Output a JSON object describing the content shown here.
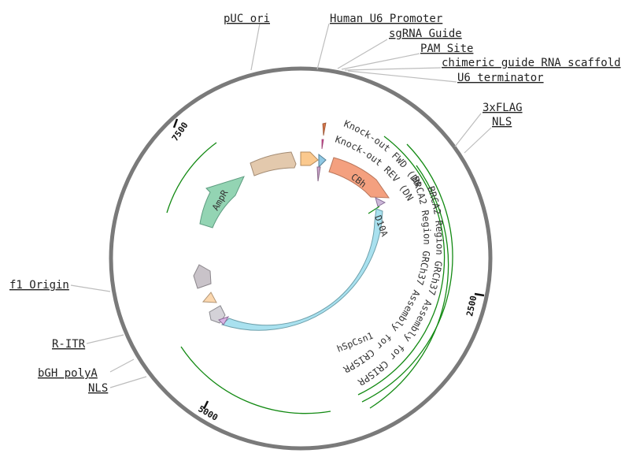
{
  "plasmid": {
    "backbone_color": "#7a7a7a",
    "track_color": "#138a13"
  },
  "labels": {
    "puc_ori": "pUC ori",
    "human_u6_promoter": "Human U6 Promoter",
    "sgrna_guide": "sgRNA Guide",
    "pam_site": "PAM Site",
    "chimeric_scaffold": "chimeric guide RNA scaffold",
    "u6_terminator": "U6 terminator",
    "flag3x": "3xFLAG",
    "nls_top": "NLS",
    "f1_origin": "f1 Origin",
    "r_itr": "R-ITR",
    "bgh_polya": "bGH polyA",
    "nls_bottom": "NLS"
  },
  "features": {
    "cbh": {
      "label": "CBh",
      "color": "#f4a07f"
    },
    "hspcsn1": {
      "label": "hSpCsn1",
      "color": "#a9e1ef"
    },
    "ampr": {
      "label": "AmpR",
      "color": "#93d4b3"
    },
    "d10a": {
      "label": "D10A"
    },
    "puc_ori_arrow": {
      "color": "#e3c9ad"
    },
    "u6_arrow": {
      "color": "#fbc98e"
    },
    "f1_arrow": {
      "color": "#c9c3c9"
    },
    "small_arrow_peach": {
      "color": "#fbd7ae"
    },
    "small_arrow_grey": {
      "color": "#d4d2d8"
    }
  },
  "primers": {
    "fwd": "Knock-out FWD (DNA)",
    "rev": "Knock-out REV (DNA)"
  },
  "regions": {
    "crispr1": "BRCA2 Region GRCh37 Assembly for CRISPR",
    "crispr2": "BRCA2 Region GRCh37 Assembly for CRISPR"
  },
  "ticks": {
    "t2500": "2500",
    "t5000": "5000",
    "t7500": "7500"
  }
}
